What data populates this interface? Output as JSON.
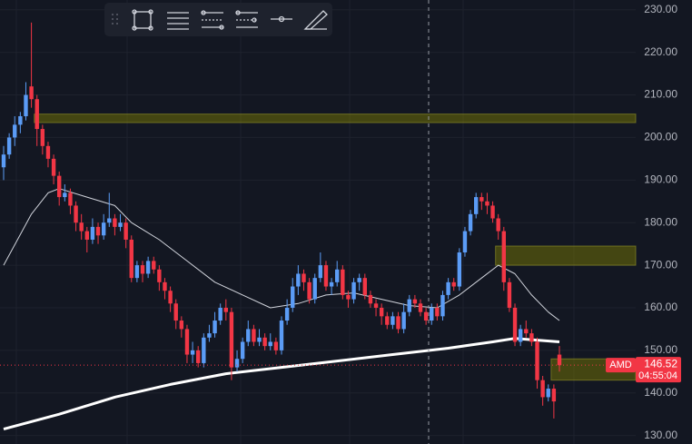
{
  "chart_data": {
    "type": "candlestick",
    "ticker": "AMD",
    "countdown": "04:55:04",
    "up_color": "#5b9cf6",
    "down_color": "#f23645",
    "ylim": [
      128,
      232.3
    ],
    "yticks": [
      {
        "value": 130,
        "label": "130.00"
      },
      {
        "value": 140,
        "label": "140.00"
      },
      {
        "value": 150,
        "label": "150.00"
      },
      {
        "value": 160,
        "label": "160.00"
      },
      {
        "value": 170,
        "label": "170.00"
      },
      {
        "value": 180,
        "label": "180.00"
      },
      {
        "value": 190,
        "label": "190.00"
      },
      {
        "value": 200,
        "label": "200.00"
      },
      {
        "value": 210,
        "label": "210.00"
      },
      {
        "value": 220,
        "label": "220.00"
      },
      {
        "value": 230,
        "label": "230.00"
      }
    ],
    "candles": [
      [
        193,
        198,
        190,
        196
      ],
      [
        196,
        201,
        195,
        200
      ],
      [
        200,
        205,
        198,
        203
      ],
      [
        203,
        206,
        201,
        205
      ],
      [
        205,
        213,
        204,
        210
      ],
      [
        212,
        227,
        207,
        209
      ],
      [
        209,
        210,
        198,
        202
      ],
      [
        202,
        203,
        196,
        198
      ],
      [
        198,
        199,
        193,
        195
      ],
      [
        195,
        196,
        189,
        191
      ],
      [
        191,
        192,
        184,
        186
      ],
      [
        186,
        189,
        185,
        187
      ],
      [
        187,
        188,
        182,
        184
      ],
      [
        184,
        185,
        178,
        180
      ],
      [
        180,
        182,
        176,
        178
      ],
      [
        178,
        179,
        173,
        176
      ],
      [
        176,
        181,
        175,
        179
      ],
      [
        179,
        180,
        175,
        177
      ],
      [
        177,
        182,
        176,
        180
      ],
      [
        180,
        187,
        179,
        181
      ],
      [
        181,
        182,
        177,
        179
      ],
      [
        179,
        182,
        178,
        180
      ],
      [
        180,
        181,
        174,
        176
      ],
      [
        176,
        177,
        166,
        167
      ],
      [
        167,
        171,
        166,
        170
      ],
      [
        170,
        171,
        166,
        168
      ],
      [
        168,
        172,
        167,
        171
      ],
      [
        171,
        172,
        168,
        169
      ],
      [
        169,
        170,
        164,
        166
      ],
      [
        166,
        167,
        162,
        164
      ],
      [
        164,
        165,
        159,
        161
      ],
      [
        161,
        162,
        155,
        157
      ],
      [
        157,
        158,
        153,
        155
      ],
      [
        155,
        156,
        147,
        149
      ],
      [
        149,
        152,
        147,
        150
      ],
      [
        150,
        151,
        146,
        147
      ],
      [
        147,
        154,
        146,
        153
      ],
      [
        153,
        156,
        152,
        154
      ],
      [
        154,
        159,
        153,
        157
      ],
      [
        157,
        161,
        156,
        160
      ],
      [
        160,
        162,
        157,
        159
      ],
      [
        159,
        160,
        143,
        146
      ],
      [
        146,
        150,
        145,
        148
      ],
      [
        148,
        153,
        147,
        152
      ],
      [
        152,
        157,
        151,
        155
      ],
      [
        155,
        156,
        151,
        152
      ],
      [
        152,
        155,
        151,
        153
      ],
      [
        153,
        154,
        150,
        151
      ],
      [
        151,
        154,
        150,
        152
      ],
      [
        152,
        153,
        149,
        150
      ],
      [
        150,
        158,
        149,
        157
      ],
      [
        157,
        162,
        156,
        160
      ],
      [
        160,
        167,
        159,
        165
      ],
      [
        165,
        170,
        163,
        168
      ],
      [
        168,
        169,
        164,
        166
      ],
      [
        166,
        167,
        161,
        162
      ],
      [
        162,
        168,
        161,
        167
      ],
      [
        167,
        173,
        166,
        170
      ],
      [
        170,
        171,
        164,
        165
      ],
      [
        165,
        167,
        163,
        166
      ],
      [
        166,
        171,
        165,
        169
      ],
      [
        169,
        170,
        162,
        163
      ],
      [
        163,
        164,
        160,
        162
      ],
      [
        162,
        167,
        161,
        166
      ],
      [
        166,
        168,
        164,
        167
      ],
      [
        167,
        168,
        162,
        163
      ],
      [
        163,
        164,
        160,
        161
      ],
      [
        161,
        162,
        158,
        160
      ],
      [
        160,
        161,
        156,
        158
      ],
      [
        158,
        159,
        155,
        156
      ],
      [
        156,
        159,
        155,
        158
      ],
      [
        158,
        159,
        154,
        155
      ],
      [
        155,
        161,
        154,
        159
      ],
      [
        159,
        163,
        158,
        162
      ],
      [
        162,
        163,
        160,
        161
      ],
      [
        161,
        162,
        158,
        159
      ],
      [
        159,
        160,
        156,
        157
      ],
      [
        157,
        161,
        156,
        160
      ],
      [
        160,
        161,
        157,
        158
      ],
      [
        158,
        164,
        157,
        163
      ],
      [
        163,
        167,
        162,
        166
      ],
      [
        166,
        167,
        164,
        165
      ],
      [
        165,
        174,
        164,
        173
      ],
      [
        173,
        179,
        172,
        178
      ],
      [
        178,
        183,
        177,
        182
      ],
      [
        182,
        187,
        181,
        186
      ],
      [
        186,
        187,
        183,
        185
      ],
      [
        185,
        187,
        182,
        184
      ],
      [
        184,
        185,
        180,
        181
      ],
      [
        181,
        182,
        176,
        178
      ],
      [
        178,
        179,
        164,
        166
      ],
      [
        166,
        167,
        159,
        160
      ],
      [
        160,
        161,
        151,
        152
      ],
      [
        152,
        156,
        151,
        155
      ],
      [
        155,
        157,
        153,
        154
      ],
      [
        154,
        155,
        151,
        152
      ],
      [
        152,
        153,
        141,
        143
      ],
      [
        143,
        144,
        137,
        139
      ],
      [
        139,
        142,
        138,
        141
      ],
      [
        141,
        142,
        134,
        138
      ],
      [
        149,
        151,
        145,
        146.52
      ]
    ],
    "lines": [
      {
        "color": "#d1d4dc",
        "width": 1,
        "x": [
          0,
          5,
          8,
          10,
          15,
          20,
          23,
          28,
          33,
          38,
          43,
          48,
          53,
          58,
          63,
          68,
          73,
          78,
          82,
          86,
          89,
          92,
          95,
          98,
          100
        ],
        "values": [
          170,
          182,
          187,
          188,
          186,
          184,
          180,
          176,
          171,
          166,
          163,
          160,
          161,
          163,
          163.5,
          162,
          160.5,
          160,
          163,
          167,
          170,
          168,
          163,
          159,
          157
        ]
      },
      {
        "color": "#ffffff",
        "width": 3,
        "x": [
          0,
          10,
          20,
          30,
          40,
          50,
          60,
          70,
          80,
          88,
          92,
          100
        ],
        "values": [
          131.5,
          135,
          139,
          142,
          144.5,
          146,
          147.5,
          149,
          150.5,
          152,
          152.8,
          152
        ]
      }
    ],
    "zones": [
      {
        "top": 205.5,
        "bottom": 203.5,
        "start": 6
      },
      {
        "top": 174.5,
        "bottom": 170,
        "start": 89
      },
      {
        "top": 148,
        "bottom": 143,
        "start": 99
      }
    ]
  }
}
